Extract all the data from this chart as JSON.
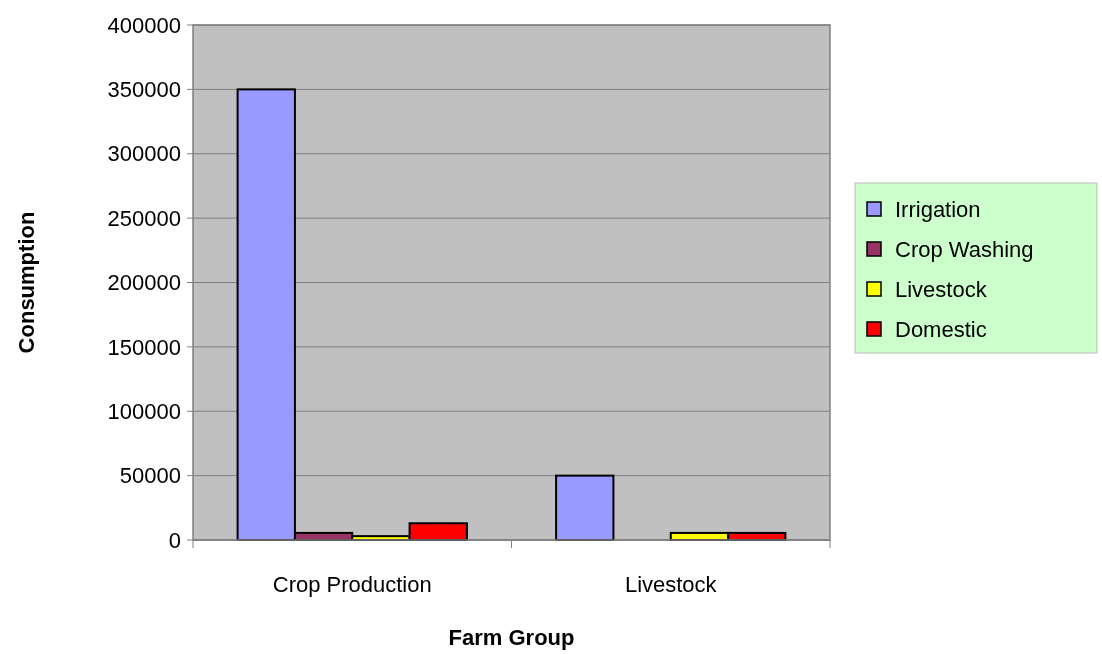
{
  "chart_data": {
    "type": "bar",
    "xlabel": "Farm Group",
    "ylabel": "Consumption",
    "categories": [
      "Crop Production",
      "Livestock"
    ],
    "series": [
      {
        "name": "Irrigation",
        "color": "#9999ff",
        "values": [
          350000,
          50000
        ]
      },
      {
        "name": "Crop Washing",
        "color": "#993366",
        "values": [
          5500,
          0
        ]
      },
      {
        "name": "Livestock",
        "color": "#ffff00",
        "values": [
          3000,
          5500
        ]
      },
      {
        "name": "Domestic",
        "color": "#ff0000",
        "values": [
          13000,
          5500
        ]
      }
    ],
    "ylim": [
      0,
      400000
    ],
    "yticks": [
      0,
      50000,
      100000,
      150000,
      200000,
      250000,
      300000,
      350000,
      400000
    ],
    "grid": "y",
    "legend": "right"
  }
}
